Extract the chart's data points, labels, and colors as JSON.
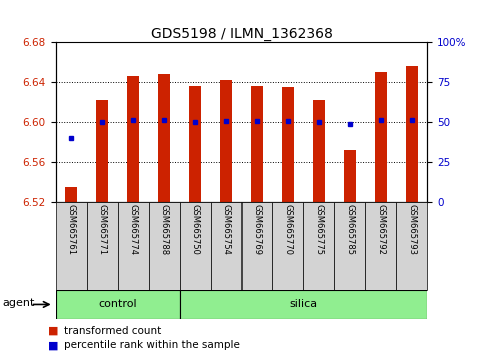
{
  "title": "GDS5198 / ILMN_1362368",
  "samples": [
    "GSM665761",
    "GSM665771",
    "GSM665774",
    "GSM665788",
    "GSM665750",
    "GSM665754",
    "GSM665769",
    "GSM665770",
    "GSM665775",
    "GSM665785",
    "GSM665792",
    "GSM665793"
  ],
  "bar_values": [
    6.535,
    6.622,
    6.646,
    6.648,
    6.636,
    6.642,
    6.636,
    6.635,
    6.622,
    6.572,
    6.65,
    6.656
  ],
  "percentile_values": [
    6.584,
    6.6,
    6.602,
    6.602,
    6.6,
    6.601,
    6.601,
    6.601,
    6.6,
    6.598,
    6.602,
    6.602
  ],
  "bar_base": 6.52,
  "ylim": [
    6.52,
    6.68
  ],
  "yticks_left": [
    6.52,
    6.56,
    6.6,
    6.64,
    6.68
  ],
  "yticks_right": [
    0,
    25,
    50,
    75,
    100
  ],
  "right_ylim": [
    0,
    100
  ],
  "control_count": 4,
  "silica_count": 8,
  "group_label_row": "agent",
  "bar_color": "#cc2200",
  "percentile_color": "#0000cc",
  "group_color": "#90ee90",
  "tick_bg_color": "#d3d3d3",
  "legend_items": [
    {
      "label": "transformed count",
      "color": "#cc2200"
    },
    {
      "label": "percentile rank within the sample",
      "color": "#0000cc"
    }
  ],
  "bg_color": "#ffffff",
  "tick_label_color_left": "#cc2200",
  "tick_label_color_right": "#0000cc",
  "bar_width": 0.4
}
